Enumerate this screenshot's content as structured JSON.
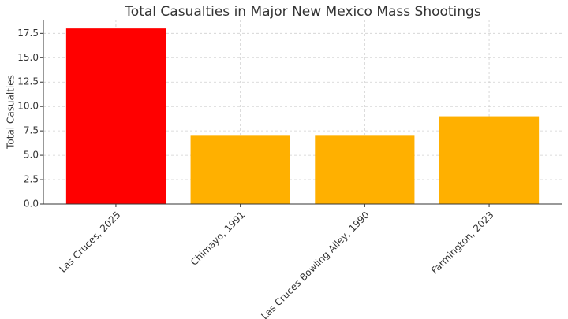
{
  "chart_data": {
    "type": "bar",
    "title": "Total Casualties in Major New Mexico Mass Shootings",
    "ylabel": "Total Casualties",
    "categories": [
      "Las Cruces, 2025",
      "Chimayo, 1991",
      "Las Cruces Bowling Alley, 1990",
      "Farmington, 2023"
    ],
    "values": [
      18,
      7,
      7,
      9
    ],
    "colors": [
      "#ff0000",
      "#ffb000",
      "#ffb000",
      "#ffb000"
    ],
    "ylim": [
      0,
      18.9
    ],
    "yticks": [
      {
        "value": 0,
        "label": "0.0"
      },
      {
        "value": 2.5,
        "label": "2.5"
      },
      {
        "value": 5,
        "label": "5.0"
      },
      {
        "value": 7.5,
        "label": "7.5"
      },
      {
        "value": 10,
        "label": "10.0"
      },
      {
        "value": 12.5,
        "label": "12.5"
      },
      {
        "value": 15,
        "label": "15.0"
      },
      {
        "value": 17.5,
        "label": "17.5"
      }
    ],
    "grid": true
  }
}
